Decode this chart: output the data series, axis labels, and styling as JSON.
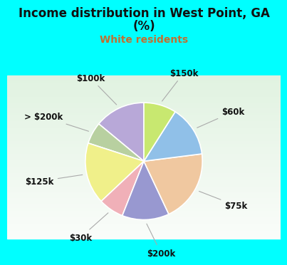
{
  "title_line1": "Income distribution in West Point, GA",
  "title_line2": "(%)",
  "subtitle": "White residents",
  "title_color": "#111111",
  "subtitle_color": "#c07030",
  "bg_color": "#00ffff",
  "pie_bg_top": "#e8f8f0",
  "pie_bg_bottom": "#d0ece0",
  "labels": [
    "$100k",
    "> $200k",
    "$125k",
    "$30k",
    "$200k",
    "$75k",
    "$60k",
    "$150k"
  ],
  "values": [
    14,
    6,
    17,
    7,
    13,
    20,
    14,
    9
  ],
  "colors": [
    "#b8a8d8",
    "#b8d0a0",
    "#f0f08a",
    "#f0b0b8",
    "#9898d0",
    "#f0c8a0",
    "#90c0e8",
    "#c8e870"
  ],
  "label_color": "#111111",
  "label_fontsize": 8.5,
  "title_fontsize": 12,
  "subtitle_fontsize": 10,
  "startangle": 90
}
